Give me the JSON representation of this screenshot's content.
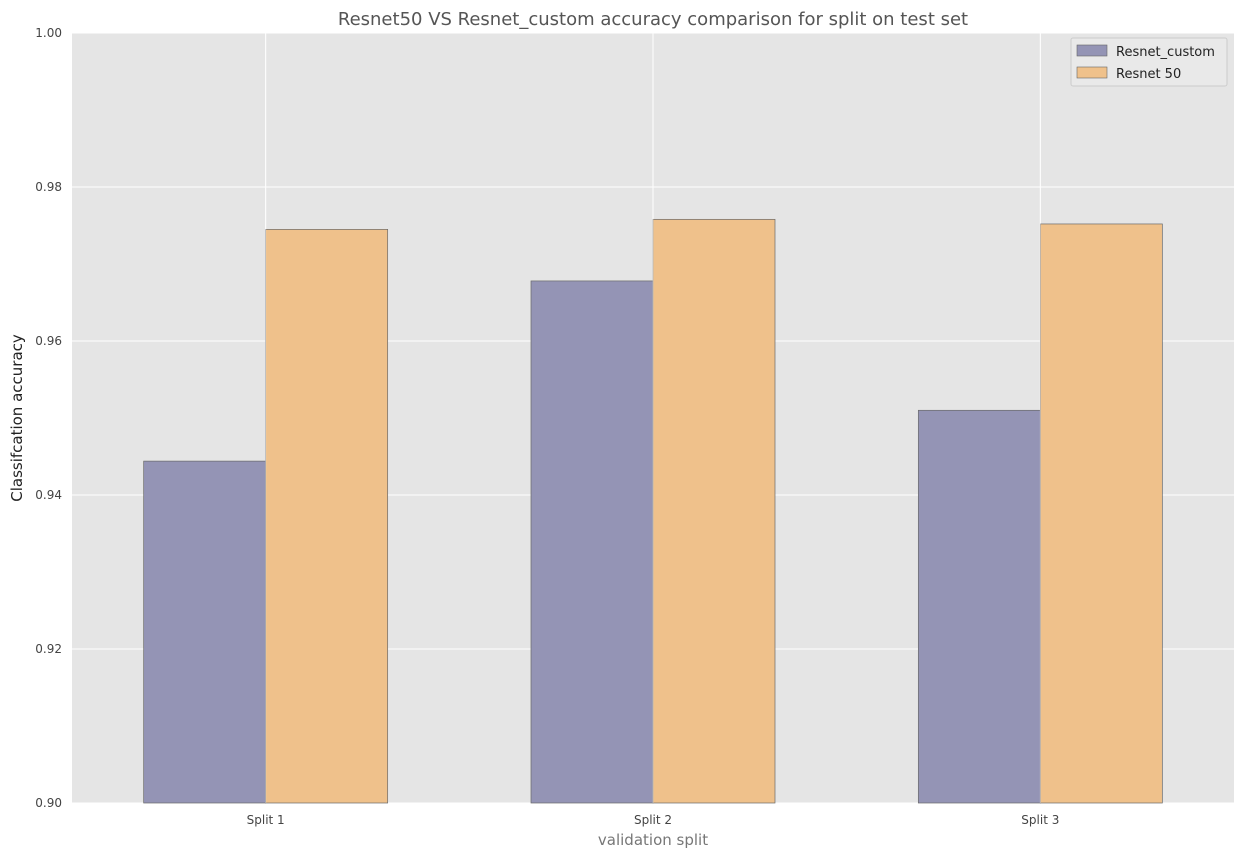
{
  "chart_data": {
    "type": "bar",
    "title": "Resnet50 VS Resnet_custom accuracy comparison for split on test set",
    "xlabel": "validation split",
    "ylabel": "Classifcation accuracy",
    "categories": [
      "Split 1",
      "Split 2",
      "Split 3"
    ],
    "series": [
      {
        "name": "Resnet_custom",
        "values": [
          0.9444,
          0.9678,
          0.951
        ],
        "color": "#9494b5"
      },
      {
        "name": "Resnet 50",
        "values": [
          0.9745,
          0.9758,
          0.9752
        ],
        "color": "#efc18b"
      }
    ],
    "ylim": [
      0.9,
      1.0
    ],
    "yticks": [
      "0.90",
      "0.92",
      "0.94",
      "0.96",
      "0.98",
      "1.00"
    ],
    "grid": true,
    "legend_position": "top-right",
    "background_color": "#e5e5e5",
    "grid_color": "#ffffff",
    "title_color": "#555555",
    "xlabel_color": "#777777",
    "ylabel_color": "#222222"
  }
}
